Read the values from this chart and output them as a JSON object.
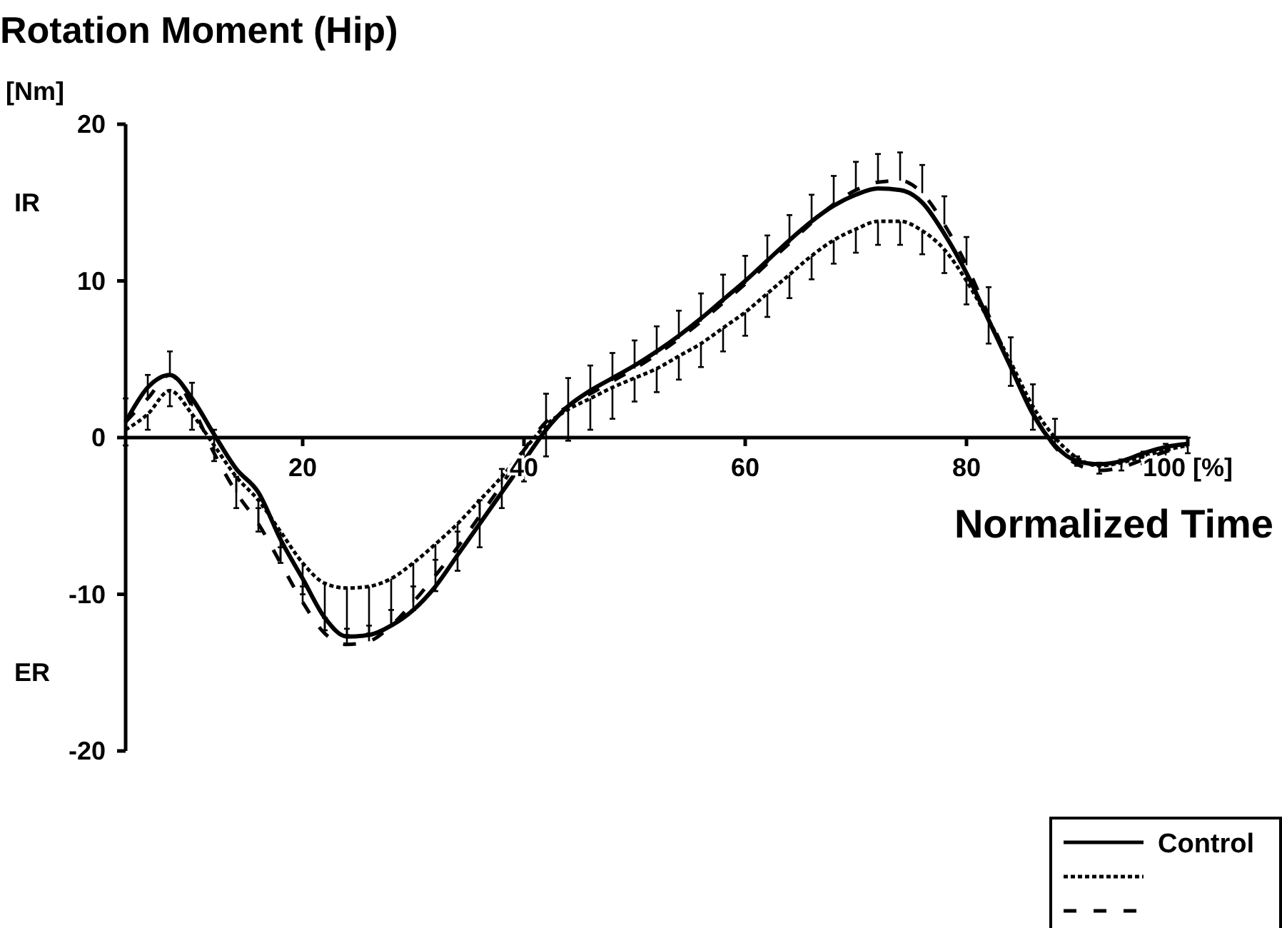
{
  "chart_data": {
    "type": "line",
    "title": "Rotation Moment (Hip)",
    "ylabel": "[Nm]",
    "xlabel": "Normalized Time",
    "annotations": [
      "IR",
      "ER"
    ],
    "x": [
      4,
      6,
      8,
      10,
      12,
      14,
      16,
      18,
      20,
      22,
      24,
      26,
      28,
      30,
      32,
      34,
      36,
      38,
      40,
      42,
      44,
      46,
      48,
      50,
      52,
      54,
      56,
      58,
      60,
      62,
      64,
      66,
      68,
      70,
      72,
      74,
      76,
      78,
      80,
      82,
      84,
      86,
      88,
      90,
      92,
      94,
      96,
      98,
      100
    ],
    "xlim": [
      4,
      100
    ],
    "ylim": [
      -20,
      20
    ],
    "xticks": [
      20,
      40,
      60,
      80,
      {
        "value": 100,
        "label": "100 [%]"
      }
    ],
    "yticks": [
      -20,
      -10,
      0,
      10,
      20
    ],
    "grid": false,
    "legend": "bottom right",
    "marker": "none",
    "series": [
      {
        "name": "Control",
        "color": "#000000",
        "line_style": "solid",
        "values": [
          1,
          3.2,
          4,
          2.5,
          0.2,
          -2,
          -3.5,
          -6.5,
          -9,
          -11.5,
          -12.7,
          -12.6,
          -12,
          -11,
          -9.5,
          -7.5,
          -5.5,
          -3.5,
          -1.5,
          0.5,
          2,
          3,
          3.8,
          4.6,
          5.5,
          6.5,
          7.6,
          8.8,
          10,
          11.3,
          12.6,
          13.8,
          14.8,
          15.5,
          15.9,
          15.8,
          15,
          13,
          10.5,
          7.5,
          4.5,
          1.5,
          -0.5,
          -1.5,
          -1.7,
          -1.5,
          -1,
          -0.6,
          -0.4
        ]
      },
      {
        "color": "#000000",
        "line_style": "dotted",
        "values": [
          0.5,
          1.5,
          3,
          1.5,
          -0.5,
          -2.5,
          -4,
          -6,
          -8,
          -9.3,
          -9.6,
          -9.5,
          -9,
          -8,
          -6.8,
          -5.5,
          -4,
          -2.5,
          -0.8,
          0.8,
          1.8,
          2.5,
          3.2,
          3.8,
          4.4,
          5.2,
          6,
          7,
          8,
          9.2,
          10.4,
          11.6,
          12.6,
          13.3,
          13.8,
          13.8,
          13.2,
          12,
          10,
          7.5,
          4.8,
          2,
          0,
          -1.3,
          -1.8,
          -1.6,
          -1.2,
          -0.8,
          -0.5
        ],
        "errors": [
          [
            -0.5,
            0.5
          ],
          [
            0.5,
            1.5
          ],
          [
            2,
            3
          ],
          [
            0.5,
            1.5
          ],
          [
            -1.5,
            -0.5
          ],
          [
            -4.5,
            -2.5
          ],
          [
            -6,
            -4
          ],
          [
            -8,
            -6
          ],
          [
            -10,
            -8
          ],
          [
            -12.3,
            -9.3
          ],
          [
            -12.6,
            -9.6
          ],
          [
            -12.5,
            -9.5
          ],
          [
            -12,
            -9
          ],
          [
            -11,
            -8
          ],
          [
            -9.8,
            -6.8
          ],
          [
            -8.5,
            -5.5
          ],
          [
            -7,
            -4
          ],
          [
            -4.5,
            -2.5
          ],
          [
            -2.8,
            -0.8
          ],
          [
            -1.2,
            0.8
          ],
          [
            -0.2,
            1.8
          ],
          [
            0.5,
            2.5
          ],
          [
            1.2,
            3.2
          ],
          [
            2.3,
            3.8
          ],
          [
            2.9,
            4.4
          ],
          [
            3.7,
            5.2
          ],
          [
            4.5,
            6
          ],
          [
            5.5,
            7
          ],
          [
            6.5,
            8
          ],
          [
            7.7,
            9.2
          ],
          [
            8.9,
            10.4
          ],
          [
            10.1,
            11.6
          ],
          [
            11.1,
            12.6
          ],
          [
            11.8,
            13.3
          ],
          [
            12.3,
            13.8
          ],
          [
            12.3,
            13.8
          ],
          [
            11.7,
            13.2
          ],
          [
            10.5,
            12
          ],
          [
            8.5,
            10
          ],
          [
            6,
            7.5
          ],
          [
            3.3,
            4.8
          ],
          [
            0.5,
            2
          ],
          null,
          [
            -1.8,
            -1.3
          ],
          [
            -2.3,
            -1.8
          ],
          [
            -2.1,
            -1.6
          ],
          [
            -1.7,
            -1.2
          ],
          [
            -1.3,
            -0.8
          ],
          [
            -1,
            -0.5
          ]
        ]
      },
      {
        "color": "#000000",
        "line_style": "dashed",
        "values": [
          1,
          2.5,
          4,
          2,
          -1,
          -3.5,
          -5.5,
          -8,
          -10.5,
          -12.5,
          -13.2,
          -13,
          -12,
          -10.5,
          -8.8,
          -7,
          -5,
          -3,
          -0.8,
          1,
          2,
          2.8,
          3.6,
          4.4,
          5.3,
          6.3,
          7.4,
          8.6,
          9.8,
          11.1,
          12.4,
          13.7,
          14.9,
          15.8,
          16.3,
          16.4,
          15.6,
          13.6,
          11,
          7.8,
          4.6,
          1.6,
          -0.6,
          -1.7,
          -2.1,
          -1.9,
          -1.4,
          -0.9,
          -0.5
        ],
        "errors": [
          [
            1,
            2.5
          ],
          [
            2.5,
            4
          ],
          [
            4,
            5.5
          ],
          [
            2,
            3.5
          ],
          [
            -1,
            0.5
          ],
          [
            -3.5,
            -2.5
          ],
          [
            -5.5,
            -4.5
          ],
          [
            -8,
            -7
          ],
          [
            -10.5,
            -9.5
          ],
          [
            -12.5,
            -11.5
          ],
          [
            -13.2,
            -12.2
          ],
          [
            -13,
            -12
          ],
          [
            -12,
            -11
          ],
          [
            -10.5,
            -9.5
          ],
          [
            -8.8,
            -7.8
          ],
          [
            -7,
            -6
          ],
          [
            -5,
            -4
          ],
          [
            -3,
            -2
          ],
          null,
          [
            1,
            2.8
          ],
          [
            2,
            3.8
          ],
          [
            2.8,
            4.6
          ],
          [
            3.6,
            5.4
          ],
          [
            4.4,
            6.2
          ],
          [
            5.3,
            7.1
          ],
          [
            6.3,
            8.1
          ],
          [
            7.4,
            9.2
          ],
          [
            8.6,
            10.4
          ],
          [
            9.8,
            11.6
          ],
          [
            11.1,
            12.9
          ],
          [
            12.4,
            14.2
          ],
          [
            13.7,
            15.5
          ],
          [
            14.9,
            16.7
          ],
          [
            15.8,
            17.6
          ],
          [
            16.3,
            18.1
          ],
          [
            16.4,
            18.2
          ],
          [
            15.6,
            17.4
          ],
          [
            13.6,
            15.4
          ],
          [
            11,
            12.8
          ],
          [
            7.8,
            9.6
          ],
          [
            4.6,
            6.4
          ],
          [
            1.6,
            3.4
          ],
          [
            -0.6,
            1.2
          ],
          [
            -1.7,
            -1.2
          ],
          [
            -2.1,
            -1.6
          ],
          [
            -1.9,
            -1.4
          ],
          [
            -1.4,
            -0.9
          ],
          [
            -0.9,
            -0.4
          ],
          [
            -0.5,
            0
          ]
        ]
      }
    ]
  }
}
